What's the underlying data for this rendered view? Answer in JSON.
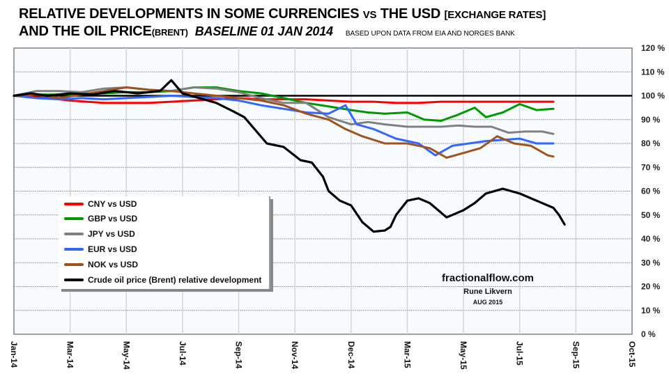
{
  "chart_data": {
    "type": "line",
    "title": {
      "line1_main": "RELATIVE DEVELOPMENTS IN SOME CURRENCIES",
      "line1_vs": "VS",
      "line1_usd": "THE USD",
      "line1_bracket": "[EXCHANGE RATES]",
      "line2_main": "AND THE OIL PRICE",
      "line2_brent": "(BRENT)",
      "line2_baseline": "BASELINE 01 JAN 2014",
      "line2_source": "BASED UPON DATA FROM EIA AND NORGES BANK"
    },
    "xlabel": "",
    "ylabel": "",
    "x_tick_labels": [
      "Jan-14",
      "Mar-14",
      "May-14",
      "Jul-14",
      "Sep-14",
      "Nov-14",
      "Dec-14",
      "Mar-15",
      "May-15",
      "Jul-15",
      "Sep-15",
      "Oct-15"
    ],
    "x_unit_note": "x values are positions on the tick scale (0 = Jan-14 ... 11 = Oct-15)",
    "xlim": [
      0,
      11
    ],
    "y_tick_labels": [
      "0 %",
      "10 %",
      "20 %",
      "30 %",
      "40 %",
      "50 %",
      "60 %",
      "70 %",
      "80 %",
      "90 %",
      "100 %",
      "110 %",
      "120 %"
    ],
    "ylim": [
      0,
      120
    ],
    "baseline": 100,
    "grid": true,
    "legend_position": "lower-left",
    "series": [
      {
        "name": "CNY vs USD",
        "color": "#ff0000",
        "x": [
          0,
          0.3,
          0.6,
          1,
          1.3,
          1.6,
          2,
          2.4,
          2.8,
          3.2,
          3.6,
          4,
          4.4,
          4.8,
          5.2,
          5.6,
          6,
          6.4,
          6.8,
          7.2,
          7.6,
          8,
          8.4,
          8.8,
          9.2,
          9.6
        ],
        "y": [
          100,
          99.5,
          99,
          98,
          97.5,
          97,
          97,
          97,
          97.5,
          98,
          98.5,
          99,
          98.5,
          98.5,
          98.5,
          98,
          97.5,
          97.5,
          97,
          97,
          97.5,
          97.5,
          97.5,
          97.5,
          97.5,
          97.5
        ]
      },
      {
        "name": "GBP vs USD",
        "color": "#009900",
        "x": [
          0,
          0.4,
          0.8,
          1.2,
          1.6,
          2,
          2.4,
          2.8,
          3.2,
          3.6,
          4,
          4.4,
          4.8,
          5.2,
          5.6,
          6,
          6.3,
          6.6,
          7,
          7.3,
          7.6,
          7.9,
          8.2,
          8.4,
          8.7,
          9,
          9.3,
          9.6
        ],
        "y": [
          100,
          100.5,
          100.5,
          101,
          101,
          101.5,
          101.5,
          102,
          103.5,
          103.5,
          102,
          101,
          99,
          97,
          95.5,
          94,
          93,
          92.5,
          93,
          90,
          89.5,
          92,
          95,
          91,
          93,
          96.5,
          94,
          94.5
        ]
      },
      {
        "name": "JPY vs USD",
        "color": "#808080",
        "x": [
          0,
          0.4,
          0.8,
          1.2,
          1.6,
          2,
          2.4,
          2.8,
          3.2,
          3.6,
          4,
          4.4,
          4.8,
          5.2,
          5.6,
          6,
          6.3,
          6.6,
          7,
          7.3,
          7.6,
          7.9,
          8.2,
          8.5,
          8.8,
          9.1,
          9.4,
          9.6
        ],
        "y": [
          100,
          102,
          102,
          101.5,
          103,
          103.5,
          102.5,
          102,
          103.5,
          103,
          101.5,
          99,
          97,
          97,
          91,
          88,
          89,
          88,
          87,
          87,
          87,
          87.5,
          87,
          87,
          84.5,
          85,
          85,
          84
        ]
      },
      {
        "name": "EUR vs USD",
        "color": "#3366ff",
        "x": [
          0,
          0.4,
          0.8,
          1.2,
          1.6,
          2,
          2.4,
          2.8,
          3.2,
          3.6,
          4,
          4.4,
          4.8,
          5.2,
          5.6,
          5.9,
          6.1,
          6.4,
          6.8,
          7.2,
          7.5,
          7.8,
          8.1,
          8.4,
          8.7,
          9,
          9.3,
          9.6
        ],
        "y": [
          100,
          99,
          98.5,
          99,
          98.5,
          99,
          99.5,
          100,
          99.5,
          99,
          98,
          96,
          94.5,
          93,
          92.5,
          96,
          88,
          86,
          82,
          80,
          75,
          79,
          80,
          81,
          81.5,
          82,
          80,
          80
        ]
      },
      {
        "name": "NOK vs USD",
        "color": "#a0521d",
        "x": [
          0,
          0.4,
          0.8,
          1.2,
          1.6,
          2,
          2.4,
          2.8,
          3.2,
          3.6,
          4,
          4.4,
          4.8,
          5.2,
          5.6,
          5.9,
          6.2,
          6.6,
          7,
          7.4,
          7.7,
          8,
          8.3,
          8.6,
          8.9,
          9.2,
          9.5,
          9.6
        ],
        "y": [
          100,
          100.5,
          99,
          100.5,
          102,
          103.5,
          102.5,
          102,
          101,
          100,
          99,
          98,
          96,
          92.5,
          90,
          86,
          83,
          80,
          80,
          78,
          74,
          76,
          78,
          83,
          80,
          79,
          75,
          74.5
        ]
      },
      {
        "name": "Crude oil price (Brent) relative development",
        "color": "#000000",
        "x": [
          0,
          0.3,
          0.6,
          1,
          1.4,
          1.8,
          2.2,
          2.6,
          2.8,
          3,
          3.3,
          3.6,
          3.9,
          4.1,
          4.5,
          4.8,
          5.1,
          5.3,
          5.5,
          5.6,
          5.8,
          6,
          6.2,
          6.4,
          6.6,
          6.7,
          6.8,
          7,
          7.2,
          7.4,
          7.7,
          8,
          8.2,
          8.4,
          8.7,
          9,
          9.3,
          9.6,
          9.7,
          9.8
        ],
        "y": [
          100,
          101,
          100,
          101,
          100.5,
          102,
          101,
          102,
          106.5,
          101,
          99,
          97,
          93.5,
          91,
          80,
          78.5,
          73,
          72,
          66,
          60,
          56,
          54,
          47,
          43,
          43.5,
          45,
          50,
          56,
          57,
          55,
          49,
          52,
          55,
          59,
          61,
          59,
          56,
          53,
          50,
          46
        ]
      }
    ]
  },
  "credits": {
    "site": "fractionalflow.com",
    "author": "Rune Likvern",
    "date": "AUG 2015"
  }
}
